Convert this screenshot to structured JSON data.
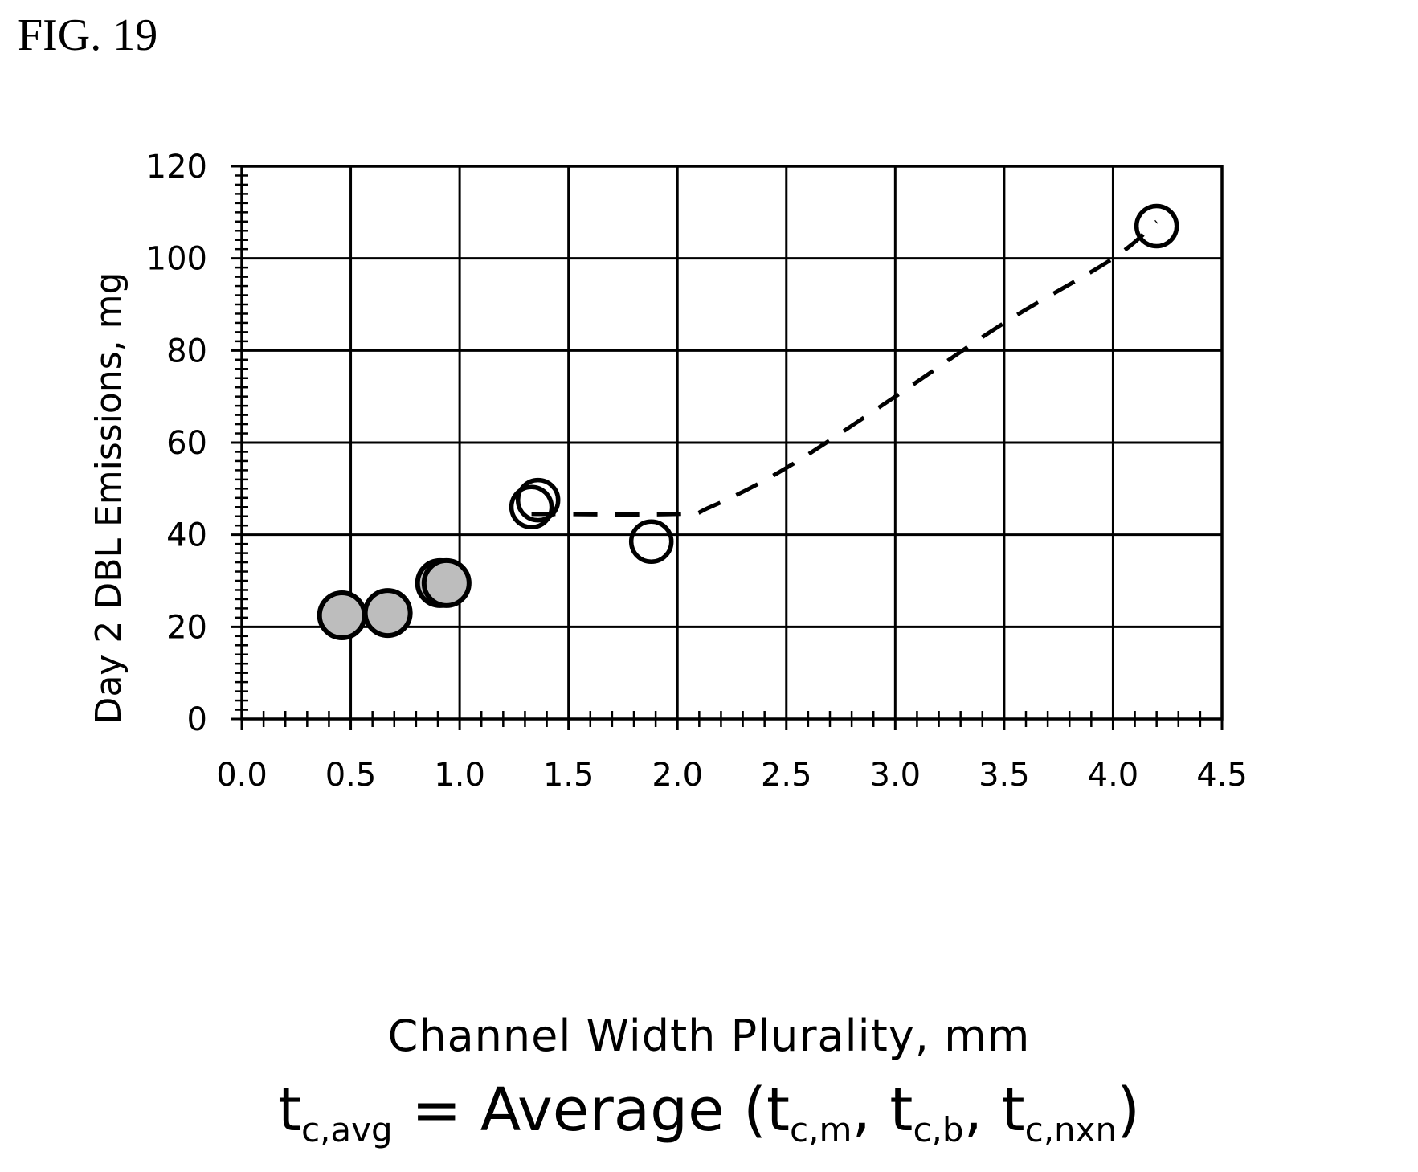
{
  "figure_label": "FIG. 19",
  "chart_data": {
    "type": "scatter",
    "title": "",
    "xlabel": "Channel Width Plurality, mm",
    "ylabel": "Day 2 DBL Emissions, mg",
    "xlim": [
      0.0,
      4.5
    ],
    "ylim": [
      0,
      120
    ],
    "x_ticks": [
      "0.0",
      "0.5",
      "1.0",
      "1.5",
      "2.0",
      "2.5",
      "3.0",
      "3.5",
      "4.0",
      "4.5"
    ],
    "y_ticks": [
      "0",
      "20",
      "40",
      "60",
      "80",
      "100",
      "120"
    ],
    "grid": true,
    "legend": "none",
    "series": [
      {
        "marker": "filled-circle",
        "color": "#bdbdbd",
        "points": [
          {
            "x": 0.46,
            "y": 22.5
          },
          {
            "x": 0.67,
            "y": 23.0
          },
          {
            "x": 0.91,
            "y": 29.5
          },
          {
            "x": 0.94,
            "y": 29.5
          }
        ]
      },
      {
        "marker": "open-circle",
        "color": "#000000",
        "points": [
          {
            "x": 1.33,
            "y": 46.0
          },
          {
            "x": 1.36,
            "y": 47.5
          },
          {
            "x": 1.88,
            "y": 38.5
          },
          {
            "x": 4.2,
            "y": 107.0
          }
        ]
      }
    ],
    "trend_line": {
      "style": "dashed",
      "points": [
        {
          "x": 1.33,
          "y": 44.5
        },
        {
          "x": 2.0,
          "y": 44.5
        },
        {
          "x": 2.15,
          "y": 46.0
        },
        {
          "x": 2.5,
          "y": 54.5
        },
        {
          "x": 3.0,
          "y": 70.0
        },
        {
          "x": 3.5,
          "y": 86.0
        },
        {
          "x": 4.0,
          "y": 100.0
        },
        {
          "x": 4.2,
          "y": 108.0
        }
      ]
    }
  },
  "formula": {
    "lhs": "t",
    "lhs_sub": "c,avg",
    "eq": " = Average (",
    "t1": "t",
    "t1_sub": "c,m",
    "sep1": ", ",
    "t2": "t",
    "t2_sub": "c,b",
    "sep2": ", ",
    "t3": "t",
    "t3_sub": "c,nxn",
    "close": ")"
  }
}
